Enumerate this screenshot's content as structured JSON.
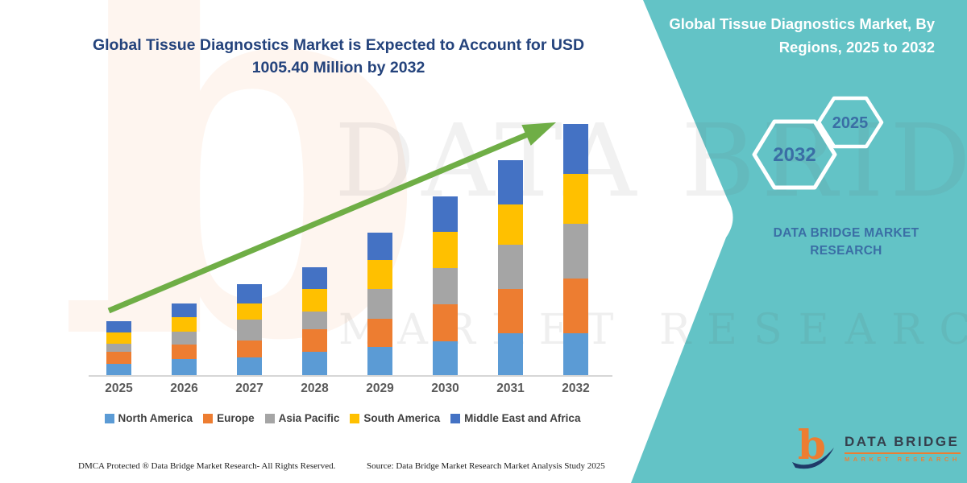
{
  "header": {
    "title_line1": "Global Tissue Diagnostics Market is Expected to Account for USD",
    "title_line2": "1005.40 Million by 2032"
  },
  "side_panel": {
    "panel_color": "#63C3C6",
    "title_line1": "Global Tissue Diagnostics Market, By",
    "title_line2": "Regions, 2025 to 2032",
    "hexagons": [
      {
        "label": "2032"
      },
      {
        "label": "2025"
      }
    ],
    "brand_line1": "DATA BRIDGE MARKET",
    "brand_line2": "RESEARCH",
    "logo": {
      "mark_letter": "b",
      "name": "DATA BRIDGE",
      "subtitle": "MARKET RESEARCH"
    }
  },
  "watermark": {
    "letter": "b",
    "line1": "DATA BRIDGE",
    "line2": "MARKET RESEARCH"
  },
  "footer": {
    "left": "DMCA Protected ® Data Bridge Market Research-  All Rights Reserved.",
    "right": "Source: Data Bridge Market Research  Market Analysis Study 2025"
  },
  "chart_data": {
    "type": "bar",
    "stacked": true,
    "title": "Global Tissue Diagnostics Market is Expected to Account for USD 1005.40 Million by 2032",
    "unit": "USD Million",
    "categories": [
      "2025",
      "2026",
      "2027",
      "2028",
      "2029",
      "2030",
      "2031",
      "2032"
    ],
    "series": [
      {
        "name": "North America",
        "color": "#5B9BD5",
        "values": [
          45,
          64,
          71,
          93,
          113,
          135,
          168,
          168
        ]
      },
      {
        "name": "Europe",
        "color": "#ED7D31",
        "values": [
          48,
          58,
          68,
          90,
          113,
          148,
          177,
          219
        ]
      },
      {
        "name": "Asia Pacific",
        "color": "#A5A5A5",
        "values": [
          32,
          52,
          84,
          71,
          119,
          145,
          177,
          219
        ]
      },
      {
        "name": "South America",
        "color": "#FFC000",
        "values": [
          45,
          58,
          64,
          90,
          116,
          145,
          161,
          200
        ]
      },
      {
        "name": "Middle East and Africa",
        "color": "#4472C4",
        "values": [
          45,
          55,
          77,
          87,
          110,
          142,
          177,
          199.4
        ]
      }
    ],
    "totals_estimated": [
      215,
      287,
      364,
      431,
      571,
      715,
      860,
      1005.4
    ],
    "ylim": [
      0,
      1050
    ],
    "grid": false,
    "legend_position": "bottom",
    "axis_color": "#d6d6d6",
    "trend_arrow_color": "#6FAE46"
  }
}
